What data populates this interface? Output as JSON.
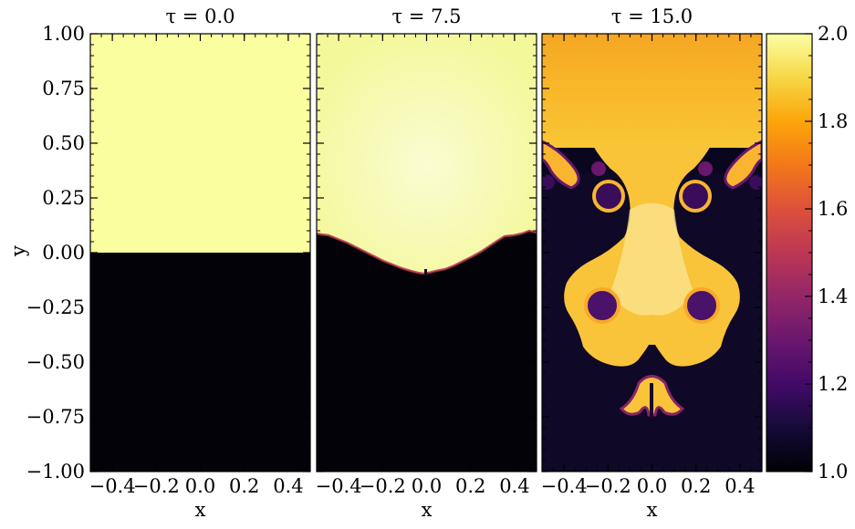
{
  "chart_data": {
    "type": "heatmap",
    "colormap": "inferno",
    "xlim": [
      -0.5,
      0.5
    ],
    "ylim": [
      -1.0,
      1.0
    ],
    "xticks": [
      -0.4,
      -0.2,
      0.0,
      0.2,
      0.4
    ],
    "xtick_labels": [
      "−0.4",
      "−0.2",
      "0.0",
      "0.2",
      "0.4"
    ],
    "yticks": [
      1.0,
      0.75,
      0.5,
      0.25,
      0.0,
      -0.25,
      -0.5,
      -0.75,
      -1.0
    ],
    "ytick_labels": [
      "1.00",
      "0.75",
      "0.50",
      "0.25",
      "0.00",
      "−0.25",
      "−0.50",
      "−0.75",
      "−1.00"
    ],
    "xlabel": "x",
    "ylabel": "y",
    "colorbar": {
      "range": [
        1.0,
        2.0
      ],
      "ticks": [
        2.0,
        1.8,
        1.6,
        1.4,
        1.2,
        1.0
      ],
      "tick_labels": [
        "2.0",
        "1.8",
        "1.6",
        "1.4",
        "1.2",
        "1.0"
      ]
    },
    "panels": [
      {
        "title": "τ = 0.0",
        "tau": 0.0,
        "description": "Heavy fluid (density 2.0) occupies y > 0; light fluid (density 1.0) occupies y < 0; flat interface at y = 0."
      },
      {
        "title": "τ = 7.5",
        "tau": 7.5,
        "description": "Interface bulges downward in the centre (to about y ≈ -0.1) and rises to y ≈ 0.1 at the side walls."
      },
      {
        "title": "τ = 15.0",
        "tau": 15.0,
        "description": "Fully developed Rayleigh-Taylor mushroom structure: a central heavy spike descends to about y ≈ -0.75 with rolled-up Kelvin-Helmholtz vortices on its flanks."
      }
    ]
  }
}
